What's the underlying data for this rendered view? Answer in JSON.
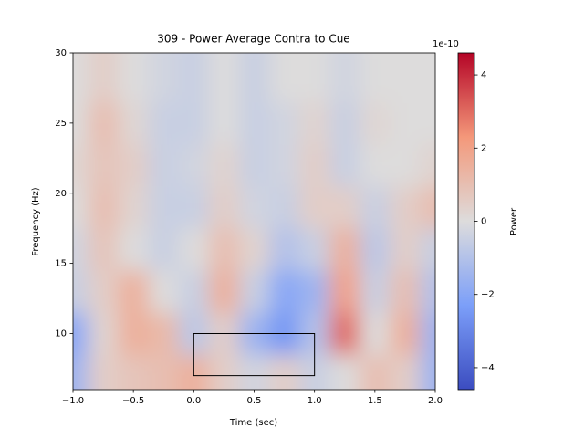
{
  "chart_data": {
    "type": "heatmap",
    "title": "309 - Power Average Contra to Cue",
    "xlabel": "Time (sec)",
    "ylabel": "Frequency (Hz)",
    "colorbar_label": "Power",
    "colorbar_offset": "1e-10",
    "colormap": "coolwarm",
    "x": [
      -1,
      -0.75,
      -0.5,
      -0.25,
      0,
      0.25,
      0.5,
      0.75,
      1,
      1.25,
      1.5,
      1.75,
      2
    ],
    "y": [
      7,
      10,
      13,
      16,
      19,
      22,
      25,
      28
    ],
    "z": [
      [
        -1.5,
        0.5,
        0.8,
        1,
        1.5,
        0.5,
        -0.3,
        0.5,
        -0.5,
        0,
        1,
        0.5,
        -1.5
      ],
      [
        -2,
        0.3,
        1.5,
        1.2,
        -0.8,
        0.5,
        -1.5,
        -2.5,
        -1,
        3,
        0,
        1.5,
        -1.5
      ],
      [
        -0.5,
        0.5,
        1.5,
        0,
        -0.5,
        1.5,
        -0.5,
        -2,
        -1.5,
        2,
        -0.5,
        1,
        -1
      ],
      [
        -0.3,
        0.8,
        0,
        -0.5,
        0,
        1,
        0.3,
        -1,
        -0.5,
        1.5,
        -0.8,
        0.5,
        -0.5
      ],
      [
        0,
        1,
        0.3,
        -0.5,
        -0.5,
        0.5,
        -0.3,
        -0.5,
        0.5,
        0.5,
        -0.5,
        0.5,
        1
      ],
      [
        0.2,
        0.8,
        0.5,
        -0.5,
        -0.3,
        0.3,
        -0.5,
        -0.3,
        0.5,
        -0.5,
        0,
        0,
        0.3
      ],
      [
        0,
        1,
        0.2,
        -0.5,
        -0.5,
        0,
        -0.5,
        -0.3,
        0.3,
        -0.5,
        0.2,
        0,
        0
      ],
      [
        0,
        0.5,
        0,
        -0.3,
        -0.5,
        0,
        -0.5,
        0,
        0,
        -0.3,
        0,
        0,
        0
      ]
    ],
    "xlim": [
      -1,
      2
    ],
    "ylim": [
      6,
      30
    ],
    "clim": [
      -4.6,
      4.6
    ],
    "xticks": [
      {
        "value": -1,
        "label": "−1.0"
      },
      {
        "value": -0.5,
        "label": "−0.5"
      },
      {
        "value": 0,
        "label": "0.0"
      },
      {
        "value": 0.5,
        "label": "0.5"
      },
      {
        "value": 1,
        "label": "1.0"
      },
      {
        "value": 1.5,
        "label": "1.5"
      },
      {
        "value": 2,
        "label": "2.0"
      }
    ],
    "yticks": [
      10,
      15,
      20,
      25,
      30
    ],
    "cticks": [
      {
        "value": -4,
        "label": "−4"
      },
      {
        "value": -2,
        "label": "−2"
      },
      0,
      2,
      4
    ],
    "box": {
      "x": [
        0,
        1
      ],
      "y": [
        7,
        10
      ]
    }
  }
}
